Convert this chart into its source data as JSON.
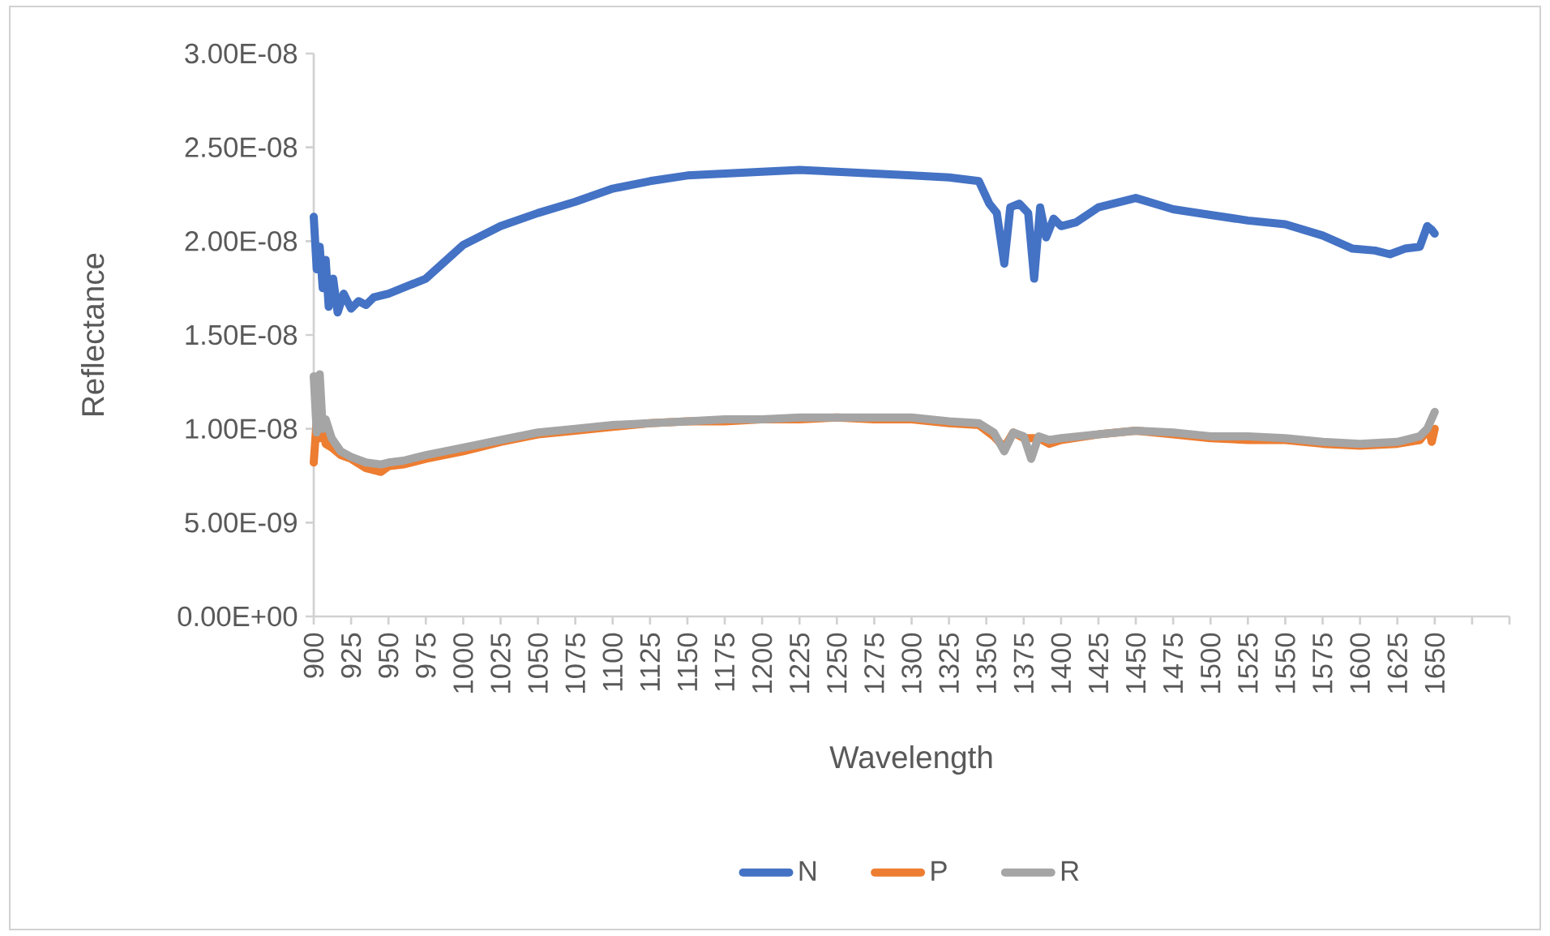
{
  "chart_data": {
    "type": "line",
    "xlabel": "Wavelength",
    "ylabel": "Reflectance",
    "xlim": [
      900,
      1700
    ],
    "xticks": [
      900,
      925,
      950,
      975,
      1000,
      1025,
      1050,
      1075,
      1100,
      1125,
      1150,
      1175,
      1200,
      1225,
      1250,
      1275,
      1300,
      1325,
      1350,
      1375,
      1400,
      1425,
      1450,
      1475,
      1500,
      1525,
      1550,
      1575,
      1600,
      1625,
      1650,
      {
        "value": 1675,
        "label": null
      },
      {
        "value": 1700,
        "label": null
      }
    ],
    "ylim": [
      0,
      3e-08
    ],
    "yticks": [
      {
        "value": 0,
        "label": "0.00E+00"
      },
      {
        "value": 5e-09,
        "label": "5.00E-09"
      },
      {
        "value": 1e-08,
        "label": "1.00E-08"
      },
      {
        "value": 1.5e-08,
        "label": "1.50E-08"
      },
      {
        "value": 2e-08,
        "label": "2.00E-08"
      },
      {
        "value": 2.5e-08,
        "label": "2.50E-08"
      },
      {
        "value": 3e-08,
        "label": "3.00E-08"
      }
    ],
    "legend": "bottom",
    "marker": "none",
    "line_style": "solid",
    "series": [
      {
        "name": "N",
        "color": "#4472c4",
        "x": [
          900,
          902,
          904,
          906,
          908,
          910,
          913,
          916,
          920,
          925,
          930,
          935,
          940,
          950,
          975,
          1000,
          1025,
          1050,
          1075,
          1100,
          1125,
          1150,
          1175,
          1200,
          1225,
          1250,
          1275,
          1300,
          1325,
          1345,
          1352,
          1357,
          1362,
          1366,
          1372,
          1378,
          1382,
          1386,
          1390,
          1395,
          1400,
          1410,
          1425,
          1450,
          1475,
          1500,
          1525,
          1550,
          1575,
          1595,
          1610,
          1620,
          1630,
          1640,
          1645,
          1648,
          1650
        ],
        "values": [
          2.13e-08,
          1.85e-08,
          1.97e-08,
          1.75e-08,
          1.9e-08,
          1.65e-08,
          1.8e-08,
          1.62e-08,
          1.72e-08,
          1.64e-08,
          1.68e-08,
          1.66e-08,
          1.7e-08,
          1.72e-08,
          1.8e-08,
          1.98e-08,
          2.08e-08,
          2.15e-08,
          2.21e-08,
          2.28e-08,
          2.32e-08,
          2.35e-08,
          2.36e-08,
          2.37e-08,
          2.38e-08,
          2.37e-08,
          2.36e-08,
          2.35e-08,
          2.34e-08,
          2.32e-08,
          2.2e-08,
          2.15e-08,
          1.88e-08,
          2.18e-08,
          2.2e-08,
          2.15e-08,
          1.8e-08,
          2.18e-08,
          2.02e-08,
          2.12e-08,
          2.08e-08,
          2.1e-08,
          2.18e-08,
          2.23e-08,
          2.17e-08,
          2.14e-08,
          2.11e-08,
          2.09e-08,
          2.03e-08,
          1.96e-08,
          1.95e-08,
          1.93e-08,
          1.96e-08,
          1.97e-08,
          2.08e-08,
          2.06e-08,
          2.04e-08
        ]
      },
      {
        "name": "P",
        "color": "#ed7d31",
        "x": [
          900,
          902,
          904,
          906,
          908,
          912,
          918,
          925,
          935,
          945,
          950,
          960,
          975,
          1000,
          1025,
          1050,
          1075,
          1100,
          1125,
          1150,
          1175,
          1200,
          1225,
          1250,
          1275,
          1300,
          1325,
          1345,
          1355,
          1362,
          1368,
          1375,
          1380,
          1385,
          1392,
          1400,
          1425,
          1450,
          1475,
          1500,
          1525,
          1550,
          1575,
          1600,
          1625,
          1640,
          1646,
          1648,
          1650
        ],
        "values": [
          8.2e-09,
          1.05e-08,
          9.5e-09,
          1e-08,
          9.2e-09,
          9e-09,
          8.6e-09,
          8.4e-09,
          7.9e-09,
          7.7e-09,
          8e-09,
          8.1e-09,
          8.4e-09,
          8.8e-09,
          9.3e-09,
          9.7e-09,
          9.9e-09,
          1.01e-08,
          1.03e-08,
          1.04e-08,
          1.04e-08,
          1.05e-08,
          1.05e-08,
          1.06e-08,
          1.05e-08,
          1.05e-08,
          1.03e-08,
          1.02e-08,
          9.6e-09,
          9e-09,
          9.8e-09,
          9.5e-09,
          null,
          9.5e-09,
          9.2e-09,
          9.4e-09,
          9.7e-09,
          9.9e-09,
          9.7e-09,
          9.5e-09,
          9.4e-09,
          9.4e-09,
          9.2e-09,
          9.1e-09,
          9.2e-09,
          9.4e-09,
          1e-08,
          9.3e-09,
          1e-08
        ]
      },
      {
        "name": "R",
        "color": "#a5a5a5",
        "x": [
          900,
          902,
          904,
          906,
          908,
          912,
          918,
          925,
          935,
          945,
          950,
          960,
          975,
          1000,
          1025,
          1050,
          1075,
          1100,
          1125,
          1150,
          1175,
          1200,
          1225,
          1250,
          1275,
          1300,
          1325,
          1345,
          1355,
          1362,
          1368,
          1375,
          1380,
          1385,
          1392,
          1400,
          1425,
          1450,
          1475,
          1500,
          1525,
          1550,
          1575,
          1600,
          1625,
          1640,
          1645,
          1650
        ],
        "values": [
          1.28e-08,
          9.8e-09,
          1.29e-08,
          1e-08,
          1.05e-08,
          9.5e-09,
          8.8e-09,
          8.5e-09,
          8.2e-09,
          8.1e-09,
          8.2e-09,
          8.3e-09,
          8.6e-09,
          9e-09,
          9.4e-09,
          9.8e-09,
          1e-08,
          1.02e-08,
          1.03e-08,
          1.04e-08,
          1.05e-08,
          1.05e-08,
          1.06e-08,
          1.06e-08,
          1.06e-08,
          1.06e-08,
          1.04e-08,
          1.03e-08,
          9.8e-09,
          8.8e-09,
          9.8e-09,
          9.6e-09,
          8.4e-09,
          9.6e-09,
          9.4e-09,
          9.5e-09,
          9.7e-09,
          9.9e-09,
          9.8e-09,
          9.6e-09,
          9.6e-09,
          9.5e-09,
          9.3e-09,
          9.2e-09,
          9.3e-09,
          9.6e-09,
          1e-08,
          1.09e-08
        ]
      }
    ]
  }
}
